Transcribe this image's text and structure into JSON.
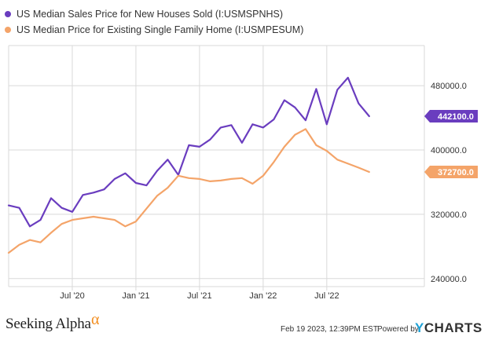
{
  "colors": {
    "series1": "#6a3dbf",
    "series2": "#f4a469",
    "grid": "#d9d9d9",
    "axis_text": "#333333",
    "alpha": "#f28c1d",
    "ycharts_y": "#1ea1d6"
  },
  "legend": [
    {
      "label": "US Median Sales Price for New Houses Sold (I:USMSPNHS)",
      "color": "#6a3dbf"
    },
    {
      "label": "US Median Price for Existing Single Family Home (I:USMPESUM)",
      "color": "#f4a469"
    }
  ],
  "chart_data": {
    "type": "line",
    "x_labels": [
      "Jul '20",
      "Jan '21",
      "Jul '21",
      "Jan '22",
      "Jul '22"
    ],
    "x_label_months": [
      6,
      12,
      18,
      24,
      30
    ],
    "y_ticks": [
      "480000.0",
      "400000.0",
      "320000.0",
      "240000.0"
    ],
    "y_tick_values": [
      480000,
      400000,
      320000,
      240000
    ],
    "ylim": [
      230000,
      530000
    ],
    "xlim": [
      0,
      39.2
    ],
    "series": [
      {
        "name": "US Median Sales Price for New Houses Sold (I:USMSPNHS)",
        "end_label": "442100.0",
        "values": [
          331000,
          328000,
          305000,
          313000,
          340000,
          328000,
          323000,
          344000,
          347000,
          351000,
          364000,
          371000,
          359000,
          356000,
          374000,
          388000,
          369000,
          406000,
          404000,
          413000,
          428000,
          431000,
          409000,
          432000,
          428000,
          438000,
          462000,
          453000,
          437000,
          476000,
          432000,
          475000,
          490000,
          458000,
          442100
        ]
      },
      {
        "name": "US Median Price for Existing Single Family Home (I:USMPESUM)",
        "end_label": "372700.0",
        "values": [
          272000,
          282000,
          288000,
          285000,
          297000,
          308000,
          313000,
          315000,
          317000,
          315000,
          313000,
          305000,
          311000,
          327000,
          343000,
          353000,
          368000,
          365000,
          364000,
          361000,
          362000,
          364000,
          365000,
          358000,
          368000,
          385000,
          404000,
          419000,
          426000,
          406000,
          399000,
          388000,
          383000,
          378000,
          372700
        ]
      }
    ]
  },
  "footer": {
    "brand": "Seeking Alpha",
    "alpha": "α",
    "timestamp": "Feb 19 2023, 12:39PM EST.",
    "powered_by": "Powered by",
    "ycharts_y": "Y",
    "ycharts_rest": "CHARTS"
  }
}
